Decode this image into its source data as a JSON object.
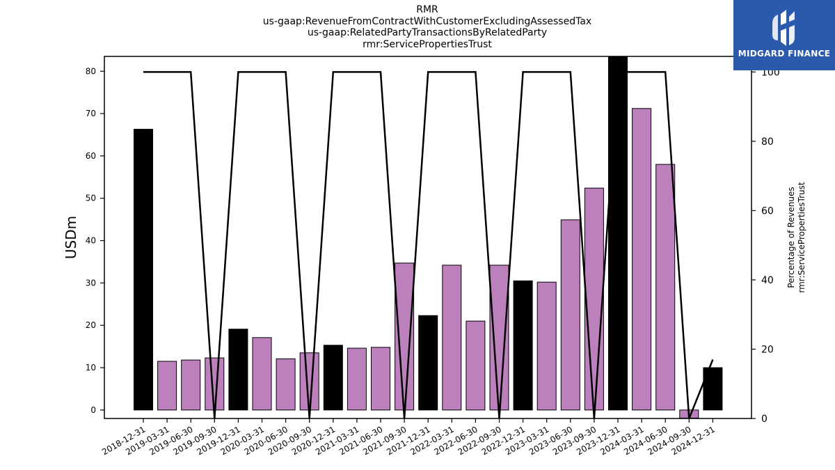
{
  "title_lines": [
    "RMR",
    "us-gaap:RevenueFromContractWithCustomerExcludingAssessedTax",
    "us-gaap:RelatedPartyTransactionsByRelatedParty",
    "rmr:ServicePropertiesTrust"
  ],
  "logo": {
    "text": "MIDGARD FINANCE",
    "background": "#2b5aad"
  },
  "chart_data": {
    "type": "bar",
    "categories": [
      "2018-12-31",
      "2019-03-31",
      "2019-06-30",
      "2019-09-30",
      "2019-12-31",
      "2020-03-31",
      "2020-06-30",
      "2020-09-30",
      "2020-12-31",
      "2021-03-31",
      "2021-06-30",
      "2021-09-30",
      "2021-12-31",
      "2022-03-31",
      "2022-06-30",
      "2022-09-30",
      "2022-12-31",
      "2023-03-31",
      "2023-06-30",
      "2023-09-30",
      "2023-12-31",
      "2024-03-31",
      "2024-06-30",
      "2024-09-30",
      "2024-12-31"
    ],
    "values": [
      66.3,
      11.5,
      11.8,
      12.3,
      19.1,
      17.1,
      12.1,
      13.5,
      15.3,
      14.6,
      14.8,
      34.7,
      22.3,
      34.2,
      21.0,
      34.2,
      30.5,
      30.2,
      44.9,
      52.4,
      83.6,
      71.2,
      58.0,
      -1.9,
      10.0
    ],
    "highlight": [
      true,
      false,
      false,
      false,
      true,
      false,
      false,
      false,
      true,
      false,
      false,
      false,
      true,
      false,
      false,
      false,
      true,
      false,
      false,
      false,
      true,
      false,
      false,
      false,
      true
    ],
    "bar_color": "#bc80bd",
    "highlight_color": "#000000",
    "ylabel": "USDm",
    "ylim": [
      -2,
      83.5
    ],
    "yticks": [
      0,
      10,
      20,
      30,
      40,
      50,
      60,
      70,
      80
    ],
    "line_series": {
      "values": [
        100,
        100,
        100,
        0,
        100,
        100,
        100,
        0,
        100,
        100,
        100,
        0,
        100,
        100,
        100,
        0,
        100,
        100,
        100,
        0,
        100,
        100,
        100,
        0,
        17
      ],
      "color": "#000000"
    },
    "y2label_lines": [
      "Percentage of Revenues",
      "rmr:ServicePropertiesTrust"
    ],
    "y2lim": [
      0,
      104.5
    ],
    "y2ticks": [
      0,
      20,
      40,
      60,
      80,
      100
    ]
  }
}
